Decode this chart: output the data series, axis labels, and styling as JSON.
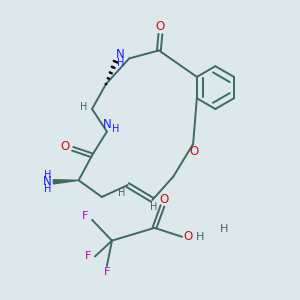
{
  "bg_color": "#dde8ec",
  "bond_color": "#3d6b5e",
  "N_color": "#1a1aff",
  "O_color": "#cc1111",
  "F_color": "#bb00bb",
  "H_color": "#3d6b5e",
  "black": "#111111",
  "figsize": [
    3.0,
    3.0
  ],
  "dpi": 100,
  "xlim": [
    0,
    10
  ],
  "ylim": [
    0,
    10
  ]
}
